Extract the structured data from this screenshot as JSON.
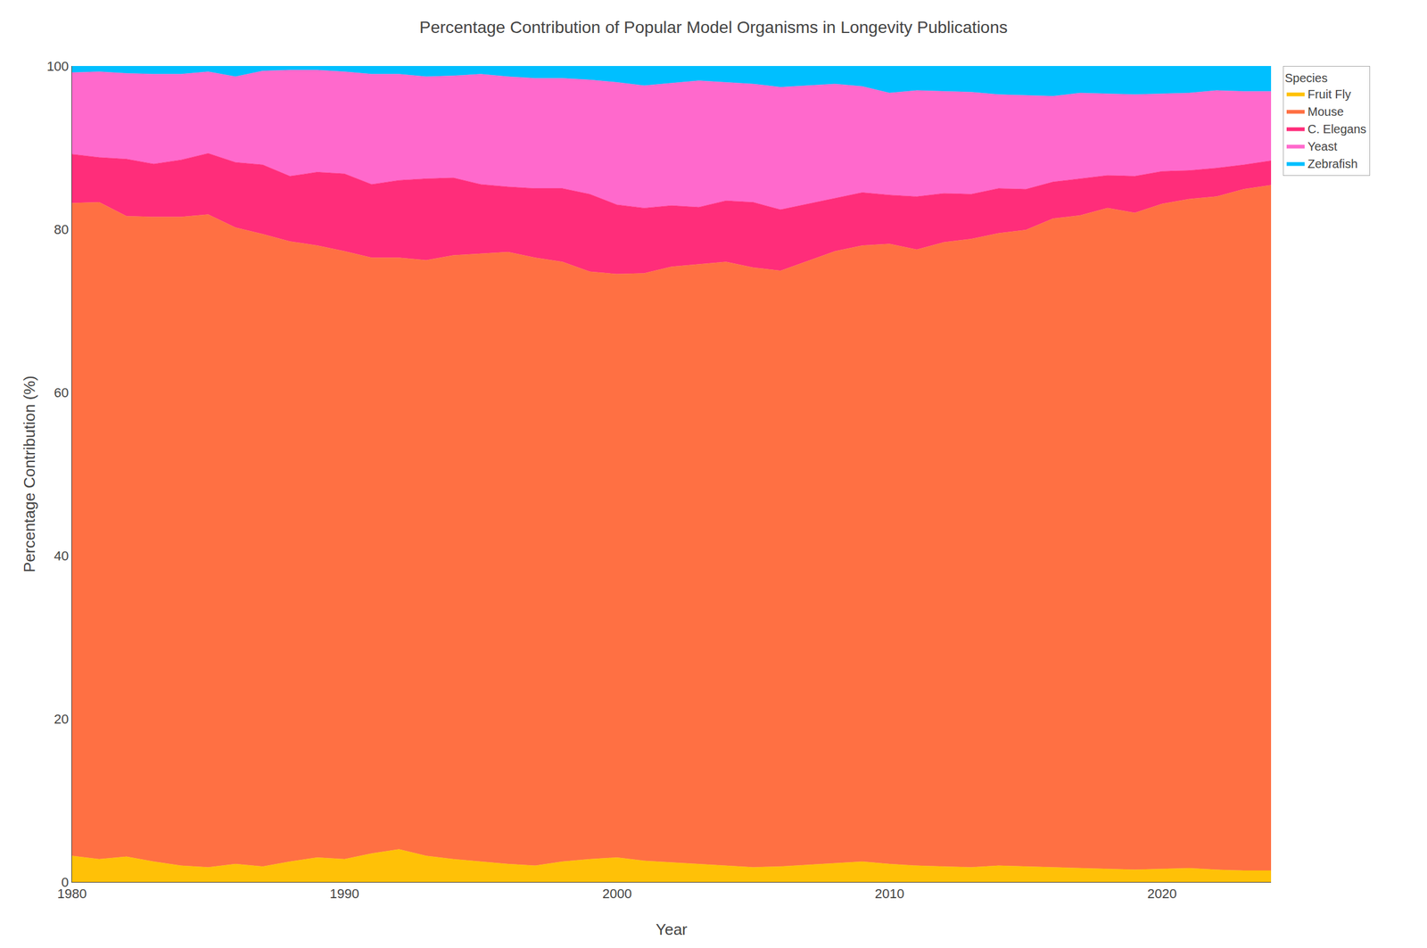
{
  "chart_data": {
    "type": "area",
    "stacked": true,
    "title": "Percentage Contribution of Popular Model Organisms in Longevity Publications",
    "xlabel": "Year",
    "ylabel": "Percentage Contribution (%)",
    "legend_title": "Species",
    "legend": "right",
    "grid": true,
    "x": [
      1980,
      1981,
      1982,
      1983,
      1984,
      1985,
      1986,
      1987,
      1988,
      1989,
      1990,
      1991,
      1992,
      1993,
      1994,
      1995,
      1996,
      1997,
      1998,
      1999,
      2000,
      2001,
      2002,
      2003,
      2004,
      2005,
      2006,
      2007,
      2008,
      2009,
      2010,
      2011,
      2012,
      2013,
      2014,
      2015,
      2016,
      2017,
      2018,
      2019,
      2020,
      2021,
      2022,
      2023,
      2024
    ],
    "xlim": [
      1980,
      2024
    ],
    "xticks": [
      1980,
      1990,
      2000,
      2010,
      2020
    ],
    "ylim": [
      0,
      100
    ],
    "yticks": [
      0,
      20,
      40,
      60,
      80,
      100
    ],
    "series": [
      {
        "name": "Fruit Fly",
        "color": "#FFC107",
        "values": [
          3.2,
          2.8,
          3.1,
          2.5,
          2.0,
          1.8,
          2.2,
          1.9,
          2.5,
          3.0,
          2.8,
          3.5,
          4.0,
          3.2,
          2.8,
          2.5,
          2.2,
          2.0,
          2.5,
          2.8,
          3.0,
          2.6,
          2.4,
          2.2,
          2.0,
          1.8,
          1.9,
          2.1,
          2.3,
          2.5,
          2.2,
          2.0,
          1.9,
          1.8,
          2.0,
          1.9,
          1.8,
          1.7,
          1.6,
          1.5,
          1.6,
          1.7,
          1.5,
          1.4,
          1.4
        ]
      },
      {
        "name": "Mouse",
        "color": "#FF7043",
        "values": [
          80.0,
          80.5,
          78.5,
          79.0,
          79.5,
          80.0,
          78.0,
          77.5,
          76.0,
          75.0,
          74.5,
          73.0,
          72.5,
          73.0,
          74.0,
          74.5,
          75.0,
          74.5,
          73.5,
          72.0,
          71.5,
          72.0,
          73.0,
          73.5,
          74.0,
          73.5,
          73.0,
          74.0,
          75.0,
          75.5,
          76.0,
          75.5,
          76.5,
          77.0,
          77.5,
          78.0,
          79.5,
          80.0,
          81.0,
          80.5,
          81.5,
          82.0,
          82.5,
          83.5,
          84.0
        ]
      },
      {
        "name": "C. Elegans",
        "color": "#FF2D7A",
        "values": [
          6.0,
          5.5,
          7.0,
          6.5,
          7.0,
          7.5,
          8.0,
          8.5,
          8.0,
          9.0,
          9.5,
          9.0,
          9.5,
          10.0,
          9.5,
          8.5,
          8.0,
          8.5,
          9.0,
          9.5,
          8.5,
          8.0,
          7.5,
          7.0,
          7.5,
          8.0,
          7.5,
          7.0,
          6.5,
          6.5,
          6.0,
          6.5,
          6.0,
          5.5,
          5.5,
          5.0,
          4.5,
          4.5,
          4.0,
          4.5,
          4.0,
          3.5,
          3.5,
          3.0,
          3.0
        ]
      },
      {
        "name": "Yeast",
        "color": "#FF69CC",
        "values": [
          10.0,
          10.5,
          10.5,
          11.0,
          10.5,
          10.0,
          10.5,
          11.5,
          13.0,
          12.5,
          12.5,
          13.5,
          13.0,
          12.5,
          12.5,
          13.5,
          13.5,
          13.5,
          13.5,
          14.0,
          15.0,
          15.0,
          15.0,
          15.5,
          14.5,
          14.5,
          15.0,
          14.5,
          14.0,
          13.0,
          12.5,
          13.0,
          12.5,
          12.5,
          11.5,
          11.5,
          10.5,
          10.5,
          10.0,
          10.0,
          9.5,
          9.5,
          9.5,
          9.0,
          8.5
        ]
      },
      {
        "name": "Zebrafish",
        "color": "#00BFFF",
        "values": [
          0.8,
          0.7,
          0.9,
          1.0,
          1.0,
          0.7,
          1.3,
          0.6,
          0.5,
          0.5,
          0.7,
          1.0,
          1.0,
          1.3,
          1.2,
          1.0,
          1.3,
          1.5,
          1.5,
          1.7,
          2.0,
          2.4,
          2.1,
          1.8,
          2.0,
          2.2,
          2.6,
          2.4,
          2.2,
          2.5,
          3.3,
          3.0,
          3.1,
          3.2,
          3.5,
          3.6,
          3.7,
          3.3,
          3.4,
          3.5,
          3.4,
          3.3,
          3.0,
          3.1,
          3.1
        ]
      }
    ]
  }
}
